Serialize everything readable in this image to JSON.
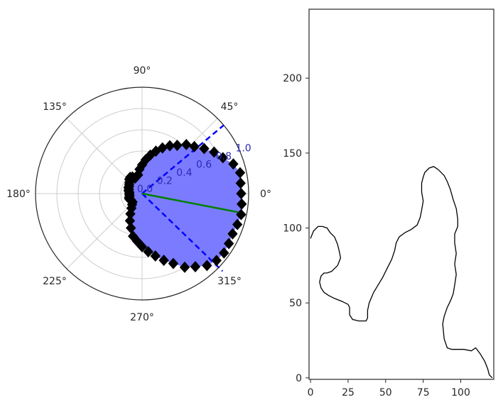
{
  "chart_data": [
    {
      "type": "polar",
      "angle_tick_labels": [
        "0°",
        "45°",
        "90°",
        "135°",
        "180°",
        "225°",
        "270°",
        "315°"
      ],
      "radial_tick_labels": [
        "0.0",
        "0.2",
        "0.4",
        "0.6",
        "0.8",
        "1.0"
      ],
      "rlim": [
        0,
        1.0
      ],
      "grid": true,
      "series": [
        {
          "kind": "boundary_points",
          "marker": "diamond",
          "color": "#000000",
          "fill_color": "#7b7bff",
          "points_deg_r": [
            [
              0,
              0.93
            ],
            [
              6,
              0.93
            ],
            [
              12,
              0.94
            ],
            [
              18,
              0.9
            ],
            [
              24,
              0.83
            ],
            [
              30,
              0.78
            ],
            [
              36,
              0.72
            ],
            [
              42,
              0.66
            ],
            [
              48,
              0.62
            ],
            [
              54,
              0.56
            ],
            [
              60,
              0.52
            ],
            [
              66,
              0.47
            ],
            [
              72,
              0.42
            ],
            [
              78,
              0.37
            ],
            [
              84,
              0.32
            ],
            [
              90,
              0.27
            ],
            [
              96,
              0.23
            ],
            [
              102,
              0.18
            ],
            [
              108,
              0.17
            ],
            [
              114,
              0.16
            ],
            [
              120,
              0.18
            ],
            [
              126,
              0.19
            ],
            [
              132,
              0.18
            ],
            [
              138,
              0.16
            ],
            [
              144,
              0.15
            ],
            [
              150,
              0.14
            ],
            [
              156,
              0.14
            ],
            [
              162,
              0.13
            ],
            [
              168,
              0.13
            ],
            [
              174,
              0.12
            ],
            [
              180,
              0.12
            ],
            [
              186,
              0.12
            ],
            [
              192,
              0.12
            ],
            [
              198,
              0.13
            ],
            [
              204,
              0.13
            ],
            [
              210,
              0.12
            ],
            [
              216,
              0.12
            ],
            [
              222,
              0.12
            ],
            [
              228,
              0.14
            ],
            [
              234,
              0.17
            ],
            [
              240,
              0.22
            ],
            [
              246,
              0.28
            ],
            [
              252,
              0.34
            ],
            [
              258,
              0.41
            ],
            [
              264,
              0.45
            ],
            [
              270,
              0.5
            ],
            [
              276,
              0.55
            ],
            [
              282,
              0.6
            ],
            [
              288,
              0.66
            ],
            [
              294,
              0.72
            ],
            [
              300,
              0.8
            ],
            [
              306,
              0.85
            ],
            [
              312,
              0.91
            ],
            [
              318,
              0.94
            ],
            [
              324,
              0.95
            ],
            [
              330,
              0.94
            ],
            [
              336,
              0.93
            ],
            [
              342,
              0.94
            ],
            [
              348,
              0.95
            ],
            [
              354,
              0.94
            ]
          ]
        },
        {
          "kind": "line",
          "color": "#0000ff",
          "style": "dashed",
          "points_deg_r": [
            [
              0,
              0
            ],
            [
              40,
              1.0
            ]
          ]
        },
        {
          "kind": "line",
          "color": "#0000ff",
          "style": "dashed",
          "points_deg_r": [
            [
              0,
              0
            ],
            [
              316,
              1.05
            ]
          ]
        },
        {
          "kind": "line",
          "color": "#008000",
          "style": "solid",
          "points_deg_r": [
            [
              0,
              0
            ],
            [
              349,
              0.97
            ]
          ]
        }
      ]
    },
    {
      "type": "line",
      "x_tick_labels": [
        "0",
        "25",
        "50",
        "75",
        "100"
      ],
      "y_tick_labels": [
        "0",
        "50",
        "100",
        "150",
        "200"
      ],
      "xlim": [
        -1,
        122
      ],
      "ylim": [
        -1,
        246
      ],
      "grid": false,
      "series": [
        {
          "kind": "contour",
          "color": "#000000",
          "x": [
            0,
            2,
            5,
            8,
            11,
            13,
            16,
            18,
            19,
            20,
            18,
            14,
            11,
            9,
            7,
            6,
            7,
            9,
            12,
            16,
            21,
            25,
            26,
            26,
            28,
            32,
            37,
            38,
            38,
            39,
            42,
            45,
            48,
            51,
            54,
            56,
            57,
            59,
            63,
            67,
            71,
            73,
            74,
            75,
            74,
            74,
            75,
            76,
            79,
            82,
            85,
            89,
            91,
            93,
            95,
            97,
            98,
            98,
            96,
            96,
            97,
            96,
            97,
            96,
            95,
            93,
            91,
            89,
            88,
            89,
            91,
            94,
            97,
            102,
            107,
            110,
            113,
            116,
            118,
            119,
            120,
            121
          ],
          "y": [
            93,
            98,
            101,
            101,
            100,
            97,
            94,
            89,
            85,
            80,
            75,
            71,
            70,
            70,
            68,
            64,
            60,
            57,
            55,
            53,
            51,
            49,
            47,
            42,
            39,
            38,
            38,
            40,
            45,
            50,
            57,
            62,
            67,
            73,
            79,
            85,
            90,
            94,
            97,
            99,
            102,
            107,
            112,
            118,
            124,
            130,
            134,
            137,
            140,
            141,
            139,
            135,
            131,
            126,
            119,
            113,
            106,
            101,
            96,
            90,
            83,
            76,
            69,
            62,
            56,
            51,
            47,
            41,
            36,
            26,
            20,
            19,
            19,
            19,
            18,
            20,
            16,
            11,
            6,
            2,
            1,
            0
          ]
        }
      ]
    }
  ]
}
